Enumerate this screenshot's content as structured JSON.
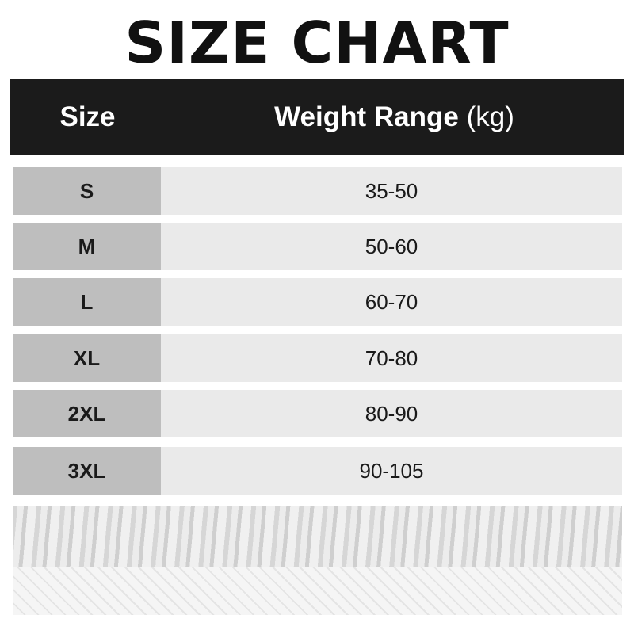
{
  "title": "SIZE CHART",
  "header": {
    "size": "Size",
    "weight": "Weight Range",
    "unit": "(kg)"
  },
  "rows": [
    {
      "size": "S",
      "weight": "35-50"
    },
    {
      "size": "M",
      "weight": "50-60"
    },
    {
      "size": "L",
      "weight": "60-70"
    },
    {
      "size": "XL",
      "weight": "70-80"
    },
    {
      "size": "2XL",
      "weight": "80-90"
    },
    {
      "size": "3XL",
      "weight": "90-105"
    }
  ],
  "colors": {
    "header_bg": "#1b1b1b",
    "size_cell": "#bebebe",
    "weight_cell": "#eaeaea"
  }
}
